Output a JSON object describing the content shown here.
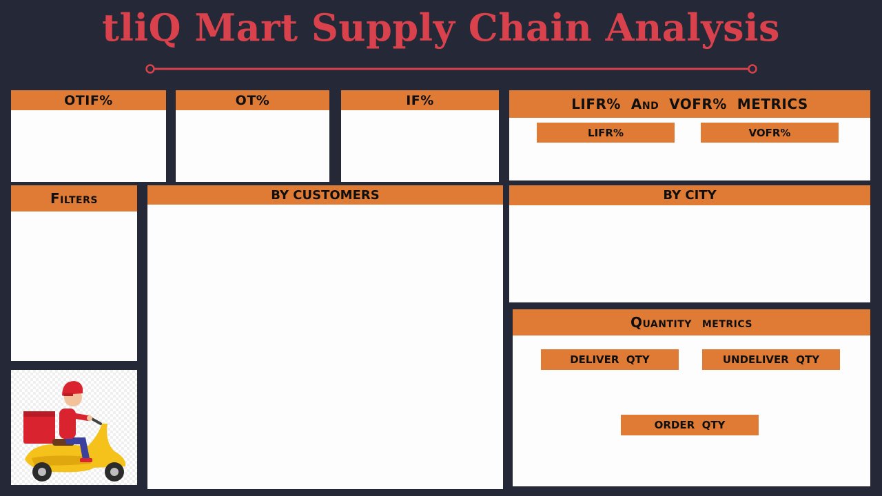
{
  "title": "tliQ Mart Supply Chain Analysis",
  "kpi": {
    "otif": "OTIF%",
    "ot": "OT%",
    "if": "IF%"
  },
  "lifr_vofr": {
    "header": "LIFR%  And  VOFR%  METRICS",
    "lifr": "LIFR%",
    "vofr": "VOFR%"
  },
  "filters": {
    "header": "Filters"
  },
  "by_customers": {
    "header": "BY CUSTOMERS"
  },
  "by_city": {
    "header": "BY CITY"
  },
  "quantity": {
    "header": "Quantity  metrics",
    "deliver": "DELIVER  QTY",
    "undeliver": "UNDELIVER  QTY",
    "order": "ORDER  QTY"
  },
  "colors": {
    "background": "#252836",
    "title": "#d9424c",
    "header": "#e07b35",
    "panel": "#fdfdfd"
  },
  "icons": [
    "title-divider-icon",
    "delivery-scooter-icon"
  ]
}
